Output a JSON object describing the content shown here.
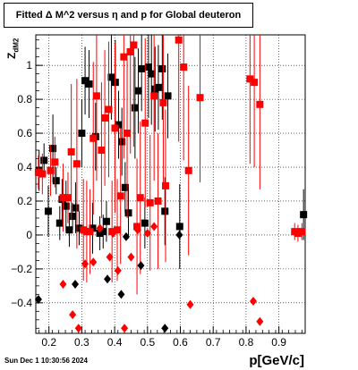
{
  "title": "Fitted Δ M^2 versus η and p for Global deuteron",
  "footer": "Sun Dec  1 10:30:56 2024",
  "chart_data": {
    "type": "scatter",
    "title": "Fitted Δ M^2 versus η and p for Global deuteron",
    "xlabel": "p[GeV/c]",
    "ylabel_main": "Z",
    "ylabel_sub": "dM2",
    "xlim": [
      0.16,
      0.98
    ],
    "ylim": [
      -0.58,
      1.18
    ],
    "grid": true,
    "xticks": [
      0.2,
      0.3,
      0.4,
      0.5,
      0.6,
      0.7,
      0.8,
      0.9
    ],
    "xtick_labels": [
      "0.2",
      "0.3",
      "0.4",
      "0.5",
      "0.6",
      "0.7",
      "0.8",
      "0.9"
    ],
    "yticks": [
      -0.4,
      -0.2,
      0,
      0.2,
      0.4,
      0.6,
      0.8,
      1
    ],
    "ytick_labels": [
      "−0.4",
      "−0.2",
      "0",
      "0.2",
      "0.4",
      "0.6",
      "0.8",
      "1"
    ],
    "colors": {
      "black_series": "#000000",
      "red_series": "#ff0000"
    },
    "series": [
      {
        "marker": "square",
        "color": "#000000",
        "points": [
          {
            "x": 0.17,
            "y": 0.38,
            "err": 0.12
          },
          {
            "x": 0.185,
            "y": 0.44,
            "err": 0.1
          },
          {
            "x": 0.198,
            "y": 0.14,
            "err": 0.15
          },
          {
            "x": 0.212,
            "y": 0.51,
            "err": 0.2
          },
          {
            "x": 0.222,
            "y": 0.32,
            "err": 0.08
          },
          {
            "x": 0.233,
            "y": 0.07,
            "err": 0.1
          },
          {
            "x": 0.24,
            "y": 0.21,
            "err": 0.12
          },
          {
            "x": 0.252,
            "y": 0.17,
            "err": 0.15
          },
          {
            "x": 0.262,
            "y": 0.03,
            "err": 0.1
          },
          {
            "x": 0.272,
            "y": 0.11,
            "err": 0.08
          },
          {
            "x": 0.281,
            "y": 0.16,
            "err": 0.15
          },
          {
            "x": 0.292,
            "y": 0.04,
            "err": 0.1
          },
          {
            "x": 0.3,
            "y": 0.6,
            "err": 0.2
          },
          {
            "x": 0.31,
            "y": 0.91,
            "err": 0.2
          },
          {
            "x": 0.322,
            "y": 0.89,
            "err": 0.2
          },
          {
            "x": 0.333,
            "y": 0.04,
            "err": 0.15
          },
          {
            "x": 0.342,
            "y": 0.58,
            "err": 0.2
          },
          {
            "x": 0.355,
            "y": 0.01,
            "err": 0.1
          },
          {
            "x": 0.365,
            "y": 0.02,
            "err": 0.1
          },
          {
            "x": 0.375,
            "y": 0.08,
            "err": 0.12
          },
          {
            "x": 0.39,
            "y": 0.93,
            "err": 0.25
          },
          {
            "x": 0.402,
            "y": 0.9,
            "err": 0.25
          },
          {
            "x": 0.412,
            "y": 0.65,
            "err": 0.2
          },
          {
            "x": 0.422,
            "y": 0.55,
            "err": 0.2
          },
          {
            "x": 0.432,
            "y": 0.28,
            "err": 0.15
          },
          {
            "x": 0.442,
            "y": 0.13,
            "err": 0.15
          },
          {
            "x": 0.462,
            "y": 0.75,
            "err": 0.3
          },
          {
            "x": 0.472,
            "y": 0.85,
            "err": 0.25
          },
          {
            "x": 0.482,
            "y": 0.98,
            "err": 0.25
          },
          {
            "x": 0.492,
            "y": 0.07,
            "err": 0.15
          },
          {
            "x": 0.503,
            "y": 0.99,
            "err": 0.3
          },
          {
            "x": 0.512,
            "y": 0.95,
            "err": 0.3
          },
          {
            "x": 0.523,
            "y": 0.86,
            "err": 0.25
          },
          {
            "x": 0.533,
            "y": 0.87,
            "err": 0.25
          },
          {
            "x": 0.545,
            "y": 0.98,
            "err": 0.3
          },
          {
            "x": 0.553,
            "y": 0.14,
            "err": 0.2
          },
          {
            "x": 0.562,
            "y": 0.82,
            "err": 0.25
          },
          {
            "x": 0.598,
            "y": 0.05,
            "err": 0.25
          },
          {
            "x": 0.975,
            "y": 0.12,
            "err": 0.15
          }
        ]
      },
      {
        "marker": "square",
        "color": "#ff0000",
        "points": [
          {
            "x": 0.168,
            "y": 0.37,
            "err": 0.1
          },
          {
            "x": 0.18,
            "y": 0.36,
            "err": 0.12
          },
          {
            "x": 0.205,
            "y": 0.38,
            "err": 0.15
          },
          {
            "x": 0.218,
            "y": 0.43,
            "err": 0.15
          },
          {
            "x": 0.243,
            "y": 0.22,
            "err": 0.2
          },
          {
            "x": 0.258,
            "y": 0.22,
            "err": 0.15
          },
          {
            "x": 0.268,
            "y": 0.49,
            "err": 0.4
          },
          {
            "x": 0.285,
            "y": 0.42,
            "err": 0.5
          },
          {
            "x": 0.305,
            "y": 0.03,
            "err": 0.3
          },
          {
            "x": 0.315,
            "y": 0.02,
            "err": 0.3
          },
          {
            "x": 0.325,
            "y": 0.02,
            "err": 0.25
          },
          {
            "x": 0.335,
            "y": 0.57,
            "err": 0.45
          },
          {
            "x": 0.345,
            "y": 0.82,
            "err": 0.5
          },
          {
            "x": 0.36,
            "y": 0.5,
            "err": 0.4
          },
          {
            "x": 0.37,
            "y": 0.69,
            "err": 0.4
          },
          {
            "x": 0.382,
            "y": 0.74,
            "err": 0.4
          },
          {
            "x": 0.392,
            "y": 0.02,
            "err": 0.3
          },
          {
            "x": 0.401,
            "y": 0.63,
            "err": 0.5
          },
          {
            "x": 0.408,
            "y": 0.03,
            "err": 0.3
          },
          {
            "x": 0.418,
            "y": 0.23,
            "err": 0.4
          },
          {
            "x": 0.428,
            "y": 1.05,
            "err": 0.6
          },
          {
            "x": 0.438,
            "y": 0.6,
            "err": 0.5
          },
          {
            "x": 0.448,
            "y": 1.08,
            "err": 0.6
          },
          {
            "x": 0.458,
            "y": 1.12,
            "err": 0.6
          },
          {
            "x": 0.468,
            "y": 0.05,
            "err": 0.4
          },
          {
            "x": 0.478,
            "y": 0.22,
            "err": 0.45
          },
          {
            "x": 0.493,
            "y": 0.66,
            "err": 0.5
          },
          {
            "x": 0.508,
            "y": 0.19,
            "err": 0.4
          },
          {
            "x": 0.52,
            "y": 0.82,
            "err": 0.5
          },
          {
            "x": 0.532,
            "y": 0.2,
            "err": 0.4
          },
          {
            "x": 0.548,
            "y": 0.78,
            "err": 0.5
          },
          {
            "x": 0.555,
            "y": 0.29,
            "err": 0.45
          },
          {
            "x": 0.595,
            "y": 1.15,
            "err": 0.6
          },
          {
            "x": 0.61,
            "y": 0.99,
            "err": 0.55
          },
          {
            "x": 0.625,
            "y": 0.38,
            "err": 0.5
          },
          {
            "x": 0.66,
            "y": 0.81,
            "err": 0.5
          },
          {
            "x": 0.812,
            "y": 0.92,
            "err": 0.5
          },
          {
            "x": 0.825,
            "y": 0.9,
            "err": 0.5
          },
          {
            "x": 0.842,
            "y": 0.77,
            "err": 0.5
          },
          {
            "x": 0.948,
            "y": 0.02,
            "err": 0.05
          },
          {
            "x": 0.958,
            "y": 0.01,
            "err": 0.05
          },
          {
            "x": 0.97,
            "y": 0.02,
            "err": 0.05
          }
        ]
      },
      {
        "marker": "diamond",
        "color": "#000000",
        "points": [
          {
            "x": 0.168,
            "y": -0.38
          },
          {
            "x": 0.28,
            "y": -0.29
          },
          {
            "x": 0.378,
            "y": -0.26
          },
          {
            "x": 0.42,
            "y": -0.35
          },
          {
            "x": 0.435,
            "y": -0.01
          },
          {
            "x": 0.48,
            "y": -0.18
          },
          {
            "x": 0.553,
            "y": -0.55
          },
          {
            "x": 0.597,
            "y": 0.0
          }
        ]
      },
      {
        "marker": "diamond",
        "color": "#ff0000",
        "points": [
          {
            "x": 0.243,
            "y": -0.29
          },
          {
            "x": 0.272,
            "y": -0.47
          },
          {
            "x": 0.29,
            "y": -0.55
          },
          {
            "x": 0.31,
            "y": -0.17
          },
          {
            "x": 0.335,
            "y": -0.16
          },
          {
            "x": 0.355,
            "y": 0.04
          },
          {
            "x": 0.385,
            "y": -0.13
          },
          {
            "x": 0.395,
            "y": 0.01
          },
          {
            "x": 0.41,
            "y": -0.21
          },
          {
            "x": 0.43,
            "y": -0.55
          },
          {
            "x": 0.45,
            "y": -0.13
          },
          {
            "x": 0.47,
            "y": 0.03
          },
          {
            "x": 0.5,
            "y": 0.01
          },
          {
            "x": 0.52,
            "y": 0.05
          },
          {
            "x": 0.63,
            "y": -0.41
          },
          {
            "x": 0.822,
            "y": -0.39
          },
          {
            "x": 0.842,
            "y": -0.51
          }
        ]
      }
    ]
  }
}
